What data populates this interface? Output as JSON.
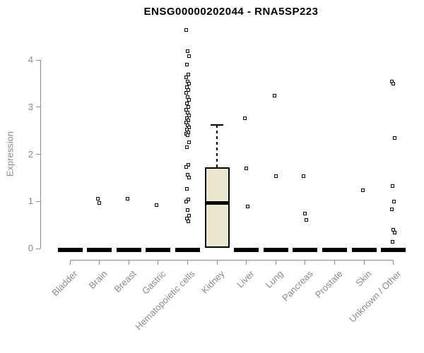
{
  "window": {
    "title": "Gene expression boxplot"
  },
  "chart_data": {
    "type": "boxplot",
    "title": "ENSG00000202044 - RNA5SP223",
    "xlabel": "",
    "ylabel": "Expression",
    "ylim": [
      0,
      4.8
    ],
    "yticks": [
      0,
      1,
      2,
      3,
      4
    ],
    "grid": false,
    "legend": "none",
    "categories": [
      "Bladder",
      "Brain",
      "Breast",
      "Gastric",
      "Hematopoietic cells",
      "Kidney",
      "Liver",
      "Lung",
      "Pancreas",
      "Prostate",
      "Skin",
      "Unknown / Other"
    ],
    "boxes": [
      {
        "category": "Bladder",
        "q1": 0,
        "median": 0,
        "q3": 0,
        "whisker_low": 0,
        "whisker_high": 0,
        "outliers": []
      },
      {
        "category": "Brain",
        "q1": 0,
        "median": 0,
        "q3": 0,
        "whisker_low": 0,
        "whisker_high": 0,
        "outliers": [
          1.05,
          0.96
        ]
      },
      {
        "category": "Breast",
        "q1": 0,
        "median": 0,
        "q3": 0,
        "whisker_low": 0,
        "whisker_high": 0,
        "outliers": [
          1.06
        ]
      },
      {
        "category": "Gastric",
        "q1": 0,
        "median": 0,
        "q3": 0,
        "whisker_low": 0,
        "whisker_high": 0,
        "outliers": [
          0.92
        ]
      },
      {
        "category": "Hematopoietic cells",
        "q1": 0,
        "median": 0,
        "q3": 0,
        "whisker_low": 0,
        "whisker_high": 0,
        "outliers": [
          4.63,
          4.18,
          4.08,
          3.9,
          3.7,
          3.63,
          3.55,
          3.5,
          3.43,
          3.36,
          3.3,
          3.22,
          3.15,
          3.08,
          3.01,
          2.95,
          2.89,
          2.83,
          2.77,
          2.72,
          2.67,
          2.62,
          2.57,
          2.52,
          2.47,
          2.43,
          2.4,
          2.25,
          2.15,
          1.78,
          1.73,
          1.56,
          1.5,
          1.26,
          1.04,
          0.99,
          0.81,
          0.7,
          0.64,
          0.57
        ]
      },
      {
        "category": "Kidney",
        "q1": 0.02,
        "median": 0.97,
        "q3": 1.72,
        "whisker_low": 0.02,
        "whisker_high": 2.62,
        "outliers": []
      },
      {
        "category": "Liver",
        "q1": 0,
        "median": 0,
        "q3": 0,
        "whisker_low": 0,
        "whisker_high": 0,
        "outliers": [
          2.76,
          1.7,
          0.89
        ]
      },
      {
        "category": "Lung",
        "q1": 0,
        "median": 0,
        "q3": 0,
        "whisker_low": 0,
        "whisker_high": 0,
        "outliers": [
          3.25,
          1.53
        ]
      },
      {
        "category": "Pancreas",
        "q1": 0,
        "median": 0,
        "q3": 0,
        "whisker_low": 0,
        "whisker_high": 0,
        "outliers": [
          1.53,
          0.74,
          0.6
        ]
      },
      {
        "category": "Prostate",
        "q1": 0,
        "median": 0,
        "q3": 0,
        "whisker_low": 0,
        "whisker_high": 0,
        "outliers": []
      },
      {
        "category": "Skin",
        "q1": 0,
        "median": 0,
        "q3": 0,
        "whisker_low": 0,
        "whisker_high": 0,
        "outliers": [
          1.24
        ]
      },
      {
        "category": "Unknown / Other",
        "q1": 0,
        "median": 0,
        "q3": 0,
        "whisker_low": 0,
        "whisker_high": 0,
        "outliers": [
          3.55,
          3.5,
          2.34,
          1.32,
          0.99,
          0.83,
          0.4,
          0.33,
          0.14
        ]
      }
    ],
    "colors": {
      "background": "#ffffff",
      "box_fill": "#EBE6CF",
      "box_border": "#000000",
      "median": "#000000",
      "collapsed_bar": "#000000",
      "outlier_border": "#000000",
      "axis": "#8a8a8a",
      "title_text": "#000000"
    }
  }
}
